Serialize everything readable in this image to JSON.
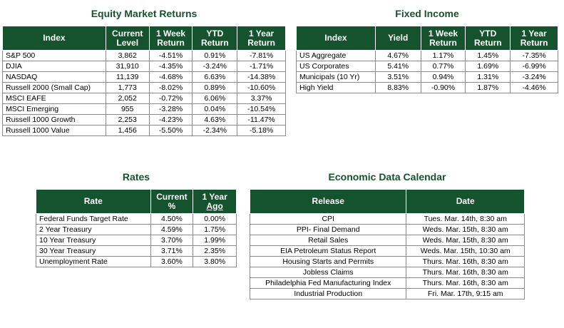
{
  "equity": {
    "title": "Equity Market Returns",
    "headers": {
      "index": "Index",
      "level_1": "Current",
      "level_2": "Level",
      "week_1": "1 Week",
      "week_2": "Return",
      "ytd_1": "YTD",
      "ytd_2": "Return",
      "year_1": "1 Year",
      "year_2": "Return"
    },
    "rows": [
      {
        "name": "S&P 500",
        "level": "3,862",
        "week": "-4.51%",
        "ytd": "0.91%",
        "year": "-7.81%"
      },
      {
        "name": "DJIA",
        "level": "31,910",
        "week": "-4.35%",
        "ytd": "-3.24%",
        "year": "-1.71%"
      },
      {
        "name": "NASDAQ",
        "level": "11,139",
        "week": "-4.68%",
        "ytd": "6.63%",
        "year": "-14.38%"
      },
      {
        "name": "Russell 2000 (Small Cap)",
        "level": "1,773",
        "week": "-8.02%",
        "ytd": "0.89%",
        "year": "-10.60%"
      },
      {
        "name": "MSCI EAFE",
        "level": "2,052",
        "week": "-0.72%",
        "ytd": "6.06%",
        "year": "3.37%"
      },
      {
        "name": "MSCI Emerging",
        "level": "955",
        "week": "-3.28%",
        "ytd": "0.04%",
        "year": "-10.54%"
      },
      {
        "name": "Russell 1000 Growth",
        "level": "2,253",
        "week": "-4.23%",
        "ytd": "4.63%",
        "year": "-11.47%"
      },
      {
        "name": "Russell 1000 Value",
        "level": "1,456",
        "week": "-5.50%",
        "ytd": "-2.34%",
        "year": "-5.18%"
      }
    ]
  },
  "fixed": {
    "title": "Fixed Income",
    "headers": {
      "index": "Index",
      "yield": "Yield",
      "week_1": "1 Week",
      "week_2": "Return",
      "ytd_1": "YTD",
      "ytd_2": "Return",
      "year_1": "1 Year",
      "year_2": "Return"
    },
    "rows": [
      {
        "name": "US Aggregate",
        "yield": "4.67%",
        "week": "1.17%",
        "ytd": "1.45%",
        "year": "-7.35%"
      },
      {
        "name": "US Corporates",
        "yield": "5.41%",
        "week": "0.77%",
        "ytd": "1.69%",
        "year": "-6.99%"
      },
      {
        "name": "Municipals (10 Yr)",
        "yield": "3.51%",
        "week": "0.94%",
        "ytd": "1.31%",
        "year": "-3.24%"
      },
      {
        "name": "High Yield",
        "yield": "8.83%",
        "week": "-0.90%",
        "ytd": "1.87%",
        "year": "-4.46%"
      }
    ]
  },
  "rates": {
    "title": "Rates",
    "headers": {
      "rate": "Rate",
      "current_1": "Current",
      "current_2": "%",
      "ago_1": "1 Year",
      "ago_2": "Ago"
    },
    "rows": [
      {
        "name": "Federal Funds Target Rate",
        "current": "4.50%",
        "ago": "0.00%"
      },
      {
        "name": "2 Year Treasury",
        "current": "4.59%",
        "ago": "1.75%"
      },
      {
        "name": "10 Year Treasury",
        "current": "3.70%",
        "ago": "1.99%"
      },
      {
        "name": "30 Year Treasury",
        "current": "3.71%",
        "ago": "2.35%"
      },
      {
        "name": "Unemployment Rate",
        "current": "3.60%",
        "ago": "3.80%"
      }
    ]
  },
  "calendar": {
    "title": "Economic Data Calendar",
    "headers": {
      "release": "Release",
      "date": "Date"
    },
    "rows": [
      {
        "release": "CPI",
        "date": "Tues. Mar. 14th, 8:30 am"
      },
      {
        "release": "PPI- Final Demand",
        "date": "Weds. Mar. 15th, 8:30 am"
      },
      {
        "release": "Retail Sales",
        "date": "Weds. Mar. 15th, 8:30 am"
      },
      {
        "release": "EIA Petroleum Status Report",
        "date": "Weds. Mar. 15th, 10:30 am"
      },
      {
        "release": "Housing Starts and Permits",
        "date": "Thurs. Mar. 16th, 8:30 am"
      },
      {
        "release": "Jobless Claims",
        "date": "Thurs. Mar. 16th, 8:30 am"
      },
      {
        "release": "Philadelphia Fed Manufacturing Index",
        "date": "Thurs. Mar. 16th, 8:30 am"
      },
      {
        "release": "Industrial Production",
        "date": "Fri. Mar. 17th, 9:15 am"
      }
    ]
  }
}
